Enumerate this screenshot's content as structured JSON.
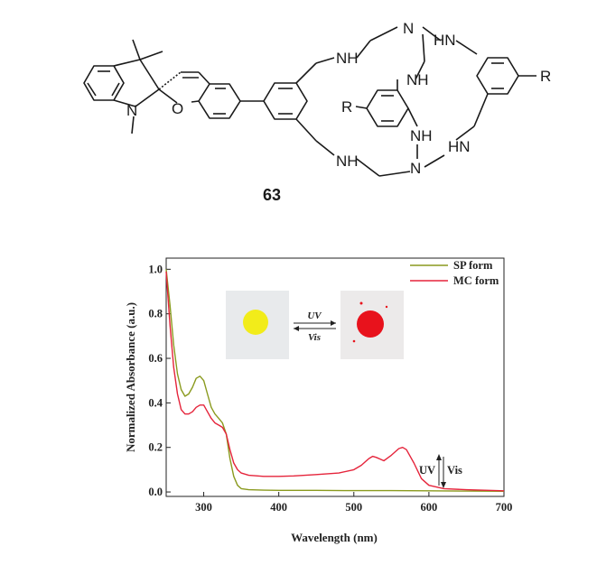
{
  "structure": {
    "compound_label": "63",
    "atoms": {
      "n_indoline": "N",
      "o_pyran": "O",
      "r_left": "R",
      "r_right": "R",
      "nh1": "NH",
      "n_top": "N",
      "hn_top": "HN",
      "nh_mid": "NH",
      "nh_low": "NH",
      "nh_bottom": "NH",
      "n_bottom": "N",
      "hn_bottom": "HN"
    }
  },
  "photo_switch": {
    "forward_label": "UV",
    "reverse_label": "Vis",
    "sp_powder_color": "#f2ec1a",
    "mc_powder_color": "#e8121c"
  },
  "uv_vis_annotation": {
    "uv": "UV",
    "vis": "Vis"
  },
  "chart_data": {
    "type": "line",
    "xlabel": "Wavelength (nm)",
    "ylabel": "Normalized Absorbance (a.u.)",
    "xlim": [
      250,
      700
    ],
    "ylim": [
      -0.02,
      1.05
    ],
    "xticks": [
      300,
      400,
      500,
      600,
      700
    ],
    "yticks": [
      0.0,
      0.2,
      0.4,
      0.6,
      0.8,
      1.0
    ],
    "xtick_labels": [
      "300",
      "400",
      "500",
      "600",
      "700"
    ],
    "ytick_labels": [
      "0.0",
      "0.2",
      "0.4",
      "0.6",
      "0.8",
      "1.0"
    ],
    "legend_position": "top-right",
    "series": [
      {
        "name": "SP form",
        "color": "#8a9a1e",
        "x": [
          250,
          255,
          260,
          265,
          270,
          275,
          280,
          285,
          290,
          295,
          300,
          305,
          310,
          315,
          320,
          325,
          330,
          335,
          340,
          345,
          350,
          360,
          380,
          400,
          450,
          500,
          550,
          600,
          650,
          700
        ],
        "y": [
          1.0,
          0.84,
          0.66,
          0.53,
          0.46,
          0.43,
          0.44,
          0.47,
          0.51,
          0.52,
          0.5,
          0.44,
          0.38,
          0.35,
          0.33,
          0.31,
          0.26,
          0.15,
          0.07,
          0.03,
          0.015,
          0.01,
          0.008,
          0.007,
          0.007,
          0.006,
          0.006,
          0.005,
          0.004,
          0.003
        ]
      },
      {
        "name": "MC form",
        "color": "#e5243b",
        "x": [
          250,
          255,
          260,
          265,
          270,
          275,
          280,
          285,
          290,
          295,
          300,
          305,
          310,
          315,
          320,
          325,
          330,
          335,
          340,
          345,
          350,
          360,
          380,
          400,
          420,
          450,
          480,
          500,
          510,
          520,
          525,
          530,
          540,
          550,
          560,
          565,
          570,
          580,
          590,
          600,
          620,
          650,
          680,
          700
        ],
        "y": [
          0.99,
          0.75,
          0.56,
          0.44,
          0.37,
          0.35,
          0.35,
          0.36,
          0.38,
          0.39,
          0.39,
          0.36,
          0.33,
          0.31,
          0.3,
          0.29,
          0.26,
          0.19,
          0.13,
          0.1,
          0.085,
          0.075,
          0.07,
          0.07,
          0.072,
          0.078,
          0.085,
          0.1,
          0.12,
          0.15,
          0.16,
          0.155,
          0.14,
          0.165,
          0.195,
          0.2,
          0.19,
          0.13,
          0.06,
          0.03,
          0.015,
          0.01,
          0.007,
          0.005
        ]
      }
    ]
  }
}
